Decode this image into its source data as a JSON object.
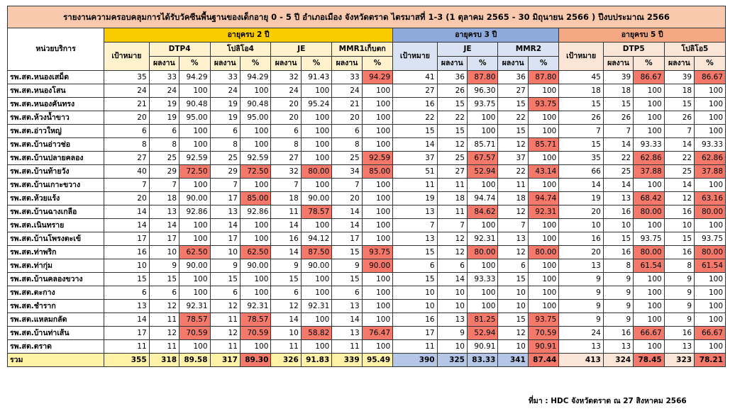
{
  "title": "รายงานความครอบคลุมการได้รับวัคซีนพื้นฐานของเด็กอายุ 0 - 5 ปี อำเภอเมือง จังหวัดตราด ไตรมาสที่ 1-3 (1 ตุลาคม 2565 - 30 มิถุนายน 2566 ) ปีงบประมาณ 2566",
  "headers": {
    "unit": "หน่วยบริการ",
    "age2": "อายุครบ 2 ปี",
    "age3": "อายุครบ 3 ปี",
    "age5": "อายุครบ 5 ปี",
    "target": "เป้าหมาย",
    "result": "ผลงาน",
    "percent": "%",
    "dtp4": "DTP4",
    "opv4": "โปลิโอ4",
    "je": "JE",
    "mmr1": "MMR1เก็บตก",
    "mmr2": "MMR2",
    "dtp5": "DTP5",
    "opv5": "โปลิโอ5"
  },
  "columns": [
    "t2",
    "dtp4_r",
    "dtp4_p",
    "opv4_r",
    "opv4_p",
    "je2_r",
    "je2_p",
    "mmr1_r",
    "mmr1_p",
    "t3",
    "je3_r",
    "je3_p",
    "mmr2_r",
    "mmr2_p",
    "t5",
    "dtp5_r",
    "dtp5_p",
    "opv5_r",
    "opv5_p"
  ],
  "rows": [
    {
      "name": "รพ.สต.หนองเสม็ด",
      "v": [
        "35",
        "33",
        "94.29",
        "33",
        "94.29",
        "32",
        "91.43",
        "33",
        "94.29",
        "41",
        "36",
        "87.80",
        "36",
        "87.80",
        "45",
        "39",
        "86.67",
        "39",
        "86.67"
      ],
      "red": [
        8,
        11,
        13,
        16,
        18
      ]
    },
    {
      "name": "รพ.สต.หนองโสน",
      "v": [
        "24",
        "24",
        "100",
        "24",
        "100",
        "24",
        "100",
        "24",
        "100",
        "27",
        "26",
        "96.30",
        "27",
        "100",
        "18",
        "18",
        "100",
        "18",
        "100"
      ],
      "red": []
    },
    {
      "name": "รพ.สต.หนองคันทรง",
      "v": [
        "21",
        "19",
        "90.48",
        "19",
        "90.48",
        "20",
        "95.24",
        "21",
        "100",
        "16",
        "15",
        "93.75",
        "15",
        "93.75",
        "15",
        "15",
        "100",
        "15",
        "100"
      ],
      "red": [
        13
      ]
    },
    {
      "name": "รพ.สต.ห้วงน้ำขาว",
      "v": [
        "20",
        "19",
        "95.00",
        "19",
        "95.00",
        "20",
        "100",
        "20",
        "100",
        "22",
        "22",
        "100",
        "22",
        "100",
        "26",
        "26",
        "100",
        "26",
        "100"
      ],
      "red": []
    },
    {
      "name": "รพ.สต.อ่าวใหญ่",
      "v": [
        "6",
        "6",
        "100",
        "6",
        "100",
        "6",
        "100",
        "6",
        "100",
        "15",
        "15",
        "100",
        "15",
        "100",
        "7",
        "7",
        "100",
        "7",
        "100"
      ],
      "red": []
    },
    {
      "name": "รพ.สต.บ้านอ่าวช่อ",
      "v": [
        "8",
        "8",
        "100",
        "8",
        "100",
        "8",
        "100",
        "8",
        "100",
        "14",
        "12",
        "85.71",
        "12",
        "85.71",
        "15",
        "14",
        "93.33",
        "14",
        "93.33"
      ],
      "red": [
        13
      ]
    },
    {
      "name": "รพ.สต.บ้านปลายคลอง",
      "v": [
        "27",
        "25",
        "92.59",
        "25",
        "92.59",
        "27",
        "100",
        "25",
        "92.59",
        "37",
        "25",
        "67.57",
        "37",
        "100",
        "35",
        "22",
        "62.86",
        "22",
        "62.86"
      ],
      "red": [
        8,
        11,
        16,
        18
      ]
    },
    {
      "name": "รพ.สต.บ้านท้ายวัง",
      "v": [
        "40",
        "29",
        "72.50",
        "29",
        "72.50",
        "32",
        "80.00",
        "34",
        "85.00",
        "51",
        "27",
        "52.94",
        "22",
        "43.14",
        "66",
        "25",
        "37.88",
        "25",
        "37.88"
      ],
      "red": [
        2,
        4,
        6,
        8,
        11,
        13,
        16,
        18
      ]
    },
    {
      "name": "รพ.สต.บ้านเกาะขวาง",
      "v": [
        "7",
        "7",
        "100",
        "7",
        "100",
        "7",
        "100",
        "7",
        "100",
        "11",
        "11",
        "100",
        "11",
        "100",
        "14",
        "14",
        "100",
        "14",
        "100"
      ],
      "red": []
    },
    {
      "name": "รพ.สต.ห้วยแร้ง",
      "v": [
        "20",
        "18",
        "90.00",
        "17",
        "85.00",
        "18",
        "90.00",
        "20",
        "100",
        "19",
        "18",
        "94.74",
        "18",
        "94.74",
        "19",
        "13",
        "68.42",
        "12",
        "63.16"
      ],
      "red": [
        4,
        13,
        16,
        18
      ]
    },
    {
      "name": "รพ.สต.บ้านฉางเกลือ",
      "v": [
        "14",
        "13",
        "92.86",
        "13",
        "92.86",
        "11",
        "78.57",
        "14",
        "100",
        "13",
        "11",
        "84.62",
        "12",
        "92.31",
        "20",
        "16",
        "80.00",
        "16",
        "80.00"
      ],
      "red": [
        6,
        11,
        13,
        16,
        18
      ]
    },
    {
      "name": "รพ.สต.เนินทราย",
      "v": [
        "14",
        "14",
        "100",
        "14",
        "100",
        "14",
        "100",
        "14",
        "100",
        "7",
        "7",
        "100",
        "7",
        "100",
        "10",
        "10",
        "100",
        "10",
        "100"
      ],
      "red": []
    },
    {
      "name": "รพ.สต.บ้านโพรงตะเข้",
      "v": [
        "17",
        "17",
        "100",
        "17",
        "100",
        "16",
        "94.12",
        "17",
        "100",
        "13",
        "12",
        "92.31",
        "13",
        "100",
        "16",
        "15",
        "93.75",
        "15",
        "93.75"
      ],
      "red": []
    },
    {
      "name": "รพ.สต.ท่าพริก",
      "v": [
        "16",
        "10",
        "62.50",
        "10",
        "62.50",
        "14",
        "87.50",
        "15",
        "93.75",
        "15",
        "12",
        "80.00",
        "12",
        "80.00",
        "20",
        "16",
        "80.00",
        "16",
        "80.00"
      ],
      "red": [
        2,
        4,
        6,
        8,
        11,
        13,
        16,
        18
      ]
    },
    {
      "name": "รพ.สต.ท่ากุ่ม",
      "v": [
        "10",
        "9",
        "90.00",
        "9",
        "90.00",
        "9",
        "90.00",
        "9",
        "90.00",
        "6",
        "6",
        "100",
        "6",
        "100",
        "13",
        "8",
        "61.54",
        "8",
        "61.54"
      ],
      "red": [
        8,
        16,
        18
      ]
    },
    {
      "name": "รพ.สต.บ้านคลองขวาง",
      "v": [
        "15",
        "15",
        "100",
        "15",
        "100",
        "15",
        "100",
        "15",
        "100",
        "15",
        "14",
        "93.33",
        "15",
        "100",
        "9",
        "9",
        "100",
        "9",
        "100"
      ],
      "red": []
    },
    {
      "name": "รพ.สต.ตะกาง",
      "v": [
        "6",
        "6",
        "100",
        "6",
        "100",
        "6",
        "100",
        "6",
        "100",
        "10",
        "10",
        "100",
        "10",
        "100",
        "9",
        "9",
        "100",
        "9",
        "100"
      ],
      "red": []
    },
    {
      "name": "รพ.สต.ชำราก",
      "v": [
        "13",
        "12",
        "92.31",
        "12",
        "92.31",
        "12",
        "92.31",
        "13",
        "100",
        "10",
        "10",
        "100",
        "10",
        "100",
        "9",
        "9",
        "100",
        "9",
        "100"
      ],
      "red": []
    },
    {
      "name": "รพ.สต.แหลมกลัด",
      "v": [
        "14",
        "11",
        "78.57",
        "11",
        "78.57",
        "14",
        "100",
        "14",
        "100",
        "16",
        "13",
        "81.25",
        "15",
        "93.75",
        "9",
        "9",
        "100",
        "9",
        "100"
      ],
      "red": [
        2,
        4,
        11,
        13
      ]
    },
    {
      "name": "รพ.สต.บ้านท่าเส้น",
      "v": [
        "17",
        "12",
        "70.59",
        "12",
        "70.59",
        "10",
        "58.82",
        "13",
        "76.47",
        "17",
        "9",
        "52.94",
        "12",
        "70.59",
        "24",
        "16",
        "66.67",
        "16",
        "66.67"
      ],
      "red": [
        2,
        4,
        6,
        8,
        11,
        13,
        16,
        18
      ]
    },
    {
      "name": "รพ.สต.ตราด",
      "v": [
        "11",
        "11",
        "100",
        "11",
        "100",
        "11",
        "100",
        "11",
        "100",
        "11",
        "10",
        "90.91",
        "10",
        "90.91",
        "13",
        "13",
        "100",
        "13",
        "100"
      ],
      "red": [
        13
      ]
    }
  ],
  "total": {
    "name": "รวม",
    "v": [
      "355",
      "318",
      "89.58",
      "317",
      "89.30",
      "326",
      "91.83",
      "339",
      "95.49",
      "390",
      "325",
      "83.33",
      "341",
      "87.44",
      "413",
      "324",
      "78.45",
      "323",
      "78.21"
    ],
    "red": [
      4,
      13,
      16,
      18
    ]
  },
  "source": "ที่มา : HDC จังหวัดตราด ณ 27 สิงหาคม 2566"
}
